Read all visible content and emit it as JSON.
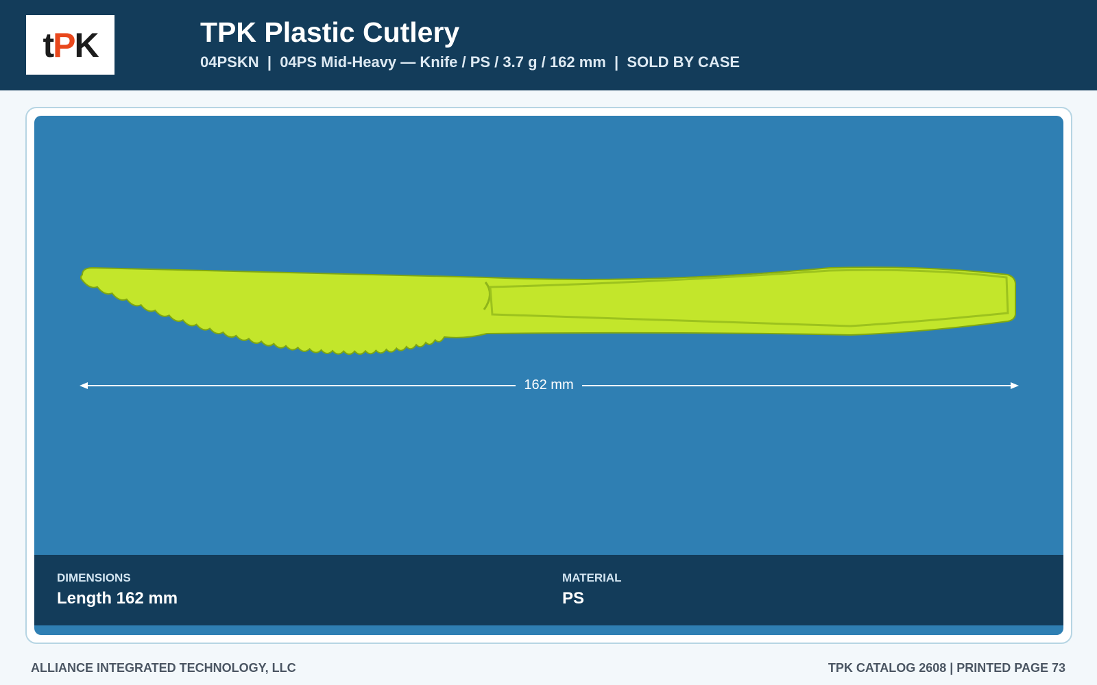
{
  "header": {
    "logo": [
      "t",
      "P",
      "K"
    ],
    "title": "TPK Plastic Cutlery",
    "subtitle": "04PSKN  |  04PS Mid-Heavy — Knife / PS / 3.7 g / 162 mm  |  SOLD BY CASE"
  },
  "product": {
    "dimension_label": "162 mm",
    "specs": [
      {
        "label": "DIMENSIONS",
        "value": "Length 162 mm"
      },
      {
        "label": "MATERIAL",
        "value": "PS"
      }
    ]
  },
  "footer": {
    "left": "ALLIANCE INTEGRATED TECHNOLOGY, LLC",
    "right": "TPK CATALOG 2608 | PRINTED PAGE 73"
  }
}
